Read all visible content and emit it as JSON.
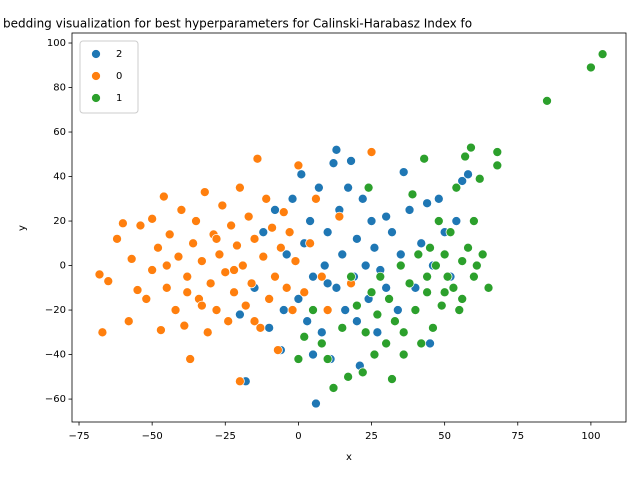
{
  "chart_data": {
    "type": "scatter",
    "title": "bedding visualization for best hyperparameters for Calinski-Harabasz Index fo",
    "x_label": "x",
    "y_label": "y",
    "xlim": [
      -77.4,
      112
    ],
    "ylim": [
      -70.3,
      104.5
    ],
    "xticks": [
      {
        "value": -75,
        "label": "−75"
      },
      {
        "value": -50,
        "label": "−50"
      },
      {
        "value": -25,
        "label": "−25"
      },
      0,
      25,
      50,
      75,
      100
    ],
    "yticks": [
      {
        "value": -60,
        "label": "−60"
      },
      {
        "value": -40,
        "label": "−40"
      },
      {
        "value": -20,
        "label": "−20"
      },
      0,
      20,
      40,
      60,
      80,
      100
    ],
    "legend_position": "upper left",
    "series": [
      {
        "name": "2",
        "color": "#1f77b4",
        "x": [
          -20,
          -18,
          -15,
          -12,
          -10,
          -8,
          -6,
          -4,
          -2,
          0,
          1,
          2,
          3,
          4,
          5,
          6,
          7,
          8,
          9,
          10,
          11,
          12,
          13,
          14,
          15,
          16,
          17,
          18,
          19,
          20,
          21,
          22,
          23,
          24,
          25,
          26,
          27,
          28,
          30,
          32,
          34,
          35,
          36,
          38,
          40,
          42,
          44,
          45,
          46,
          48,
          50,
          52,
          54,
          56,
          58,
          13,
          5,
          -5,
          10,
          20,
          30
        ],
        "values": [
          -22,
          -52,
          -10,
          15,
          -28,
          25,
          -38,
          5,
          30,
          -15,
          41,
          10,
          -25,
          20,
          -5,
          -62,
          35,
          -30,
          0,
          15,
          -42,
          46,
          -10,
          25,
          5,
          -20,
          35,
          47,
          -5,
          12,
          -45,
          30,
          0,
          -15,
          20,
          8,
          -30,
          -2,
          22,
          15,
          -20,
          5,
          42,
          25,
          -10,
          10,
          28,
          -35,
          0,
          30,
          15,
          -5,
          20,
          38,
          41,
          52,
          -40,
          -20,
          -8,
          -25,
          -10
        ]
      },
      {
        "name": "0",
        "color": "#ff7f0e",
        "x": [
          -68,
          -67,
          -65,
          -62,
          -60,
          -58,
          -57,
          -55,
          -54,
          -52,
          -50,
          -50,
          -48,
          -47,
          -46,
          -45,
          -44,
          -42,
          -41,
          -40,
          -39,
          -38,
          -37,
          -36,
          -35,
          -34,
          -33,
          -32,
          -31,
          -30,
          -29,
          -28,
          -27,
          -26,
          -25,
          -24,
          -23,
          -22,
          -21,
          -20,
          -20,
          -19,
          -18,
          -17,
          -16,
          -15,
          -14,
          -13,
          -12,
          -11,
          -10,
          -9,
          -8,
          -7,
          -6,
          -5,
          -4,
          -3,
          -2,
          -1,
          0,
          2,
          4,
          6,
          8,
          10,
          14,
          18,
          25,
          -38,
          -28,
          -22,
          -33,
          -45,
          -15
        ],
        "values": [
          -4,
          -30,
          -7,
          12,
          19,
          -25,
          3,
          -11,
          18,
          -15,
          21,
          -2,
          8,
          -29,
          31,
          -10,
          14,
          -20,
          4,
          25,
          -27,
          -5,
          -42,
          10,
          20,
          -15,
          2,
          33,
          -30,
          -8,
          14,
          -20,
          5,
          27,
          -3,
          -25,
          18,
          -12,
          9,
          -52,
          35,
          0,
          -18,
          22,
          -8,
          12,
          48,
          -28,
          4,
          30,
          -15,
          17,
          -5,
          -38,
          8,
          24,
          -10,
          15,
          -20,
          2,
          45,
          -12,
          10,
          30,
          -5,
          -20,
          22,
          -8,
          51,
          -12,
          12,
          -2,
          -18,
          0,
          -25
        ]
      },
      {
        "name": "1",
        "color": "#2ca02c",
        "x": [
          0,
          2,
          5,
          8,
          10,
          12,
          15,
          17,
          18,
          20,
          22,
          23,
          24,
          25,
          26,
          27,
          28,
          30,
          31,
          32,
          33,
          35,
          36,
          38,
          39,
          40,
          41,
          42,
          43,
          44,
          45,
          46,
          47,
          48,
          49,
          50,
          51,
          52,
          53,
          54,
          55,
          56,
          57,
          58,
          59,
          60,
          61,
          62,
          63,
          65,
          68,
          68,
          85,
          100,
          104,
          36,
          44,
          50,
          56,
          60
        ],
        "values": [
          -42,
          -32,
          -20,
          -35,
          -42,
          -55,
          -28,
          -50,
          -5,
          -18,
          -48,
          -30,
          35,
          -12,
          -40,
          -22,
          -5,
          -35,
          -15,
          -51,
          -25,
          0,
          -30,
          -8,
          32,
          -20,
          5,
          -35,
          48,
          -12,
          8,
          -28,
          0,
          20,
          -18,
          5,
          -5,
          15,
          -10,
          35,
          -20,
          2,
          49,
          8,
          53,
          20,
          0,
          39,
          5,
          -10,
          45,
          51,
          74,
          89,
          95,
          -40,
          -5,
          -12,
          -15,
          -5
        ]
      }
    ]
  }
}
